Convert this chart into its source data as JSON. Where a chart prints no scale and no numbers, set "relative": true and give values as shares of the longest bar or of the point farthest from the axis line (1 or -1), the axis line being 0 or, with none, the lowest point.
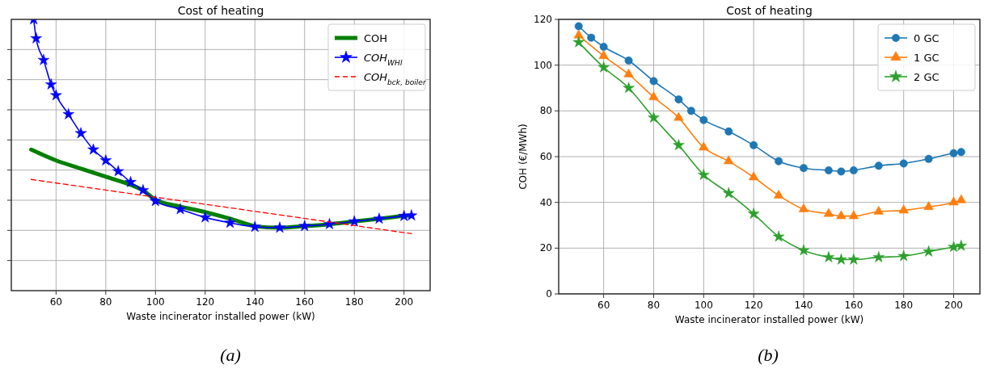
{
  "chart_data": [
    {
      "type": "line",
      "title": "Cost of heating",
      "xlabel": "Waste incinerator installed power (kW)",
      "relative": true,
      "tick_labels": "x",
      "xlim": [
        42,
        210.5
      ],
      "xticks": [
        60,
        80,
        100,
        120,
        140,
        160,
        180,
        200
      ],
      "grid": true,
      "legend": "top right",
      "annotations": [
        "(a)"
      ],
      "series": [
        {
          "name": "COH",
          "color": "#008000",
          "marker": "none",
          "line_style": "solid",
          "x": [
            50,
            60,
            70,
            80,
            90,
            95,
            100,
            110,
            120,
            130,
            137,
            140,
            150,
            160,
            170,
            180,
            190,
            200,
            203
          ],
          "values": [
            0.52,
            0.48,
            0.45,
            0.42,
            0.39,
            0.37,
            0.335,
            0.31,
            0.29,
            0.265,
            0.245,
            0.237,
            0.232,
            0.238,
            0.245,
            0.255,
            0.265,
            0.275,
            0.277
          ]
        },
        {
          "name": "COH$_{WHI}$",
          "color": "#0000ff",
          "marker": "star",
          "line_style": "solid",
          "x": [
            51,
            52,
            55,
            58,
            60,
            65,
            70,
            75,
            80,
            85,
            90,
            95,
            100,
            110,
            120,
            130,
            140,
            150,
            160,
            170,
            180,
            190,
            200,
            203
          ],
          "values": [
            1.0,
            0.93,
            0.85,
            0.76,
            0.72,
            0.65,
            0.58,
            0.52,
            0.48,
            0.44,
            0.4,
            0.37,
            0.33,
            0.3,
            0.27,
            0.25,
            0.235,
            0.232,
            0.238,
            0.245,
            0.255,
            0.265,
            0.275,
            0.277
          ]
        },
        {
          "name": "COH$_{bck, boiler}$",
          "color": "#ff0000",
          "marker": "none",
          "line_style": "dashed",
          "x": [
            50,
            203
          ],
          "values": [
            0.41,
            0.21
          ]
        }
      ]
    },
    {
      "type": "line",
      "title": "Cost of heating",
      "xlabel": "Waste incinerator installed power (kW)",
      "ylabel": "COH (€/MWh)",
      "xlim": [
        42,
        210.5
      ],
      "xticks": [
        60,
        80,
        100,
        120,
        140,
        160,
        180,
        200
      ],
      "ylim": [
        0,
        120
      ],
      "yticks": [
        0,
        20,
        40,
        60,
        80,
        100,
        120
      ],
      "grid": true,
      "legend": "top right",
      "annotations": [
        "(b)"
      ],
      "series": [
        {
          "name": "0 GC",
          "color": "#1f77b4",
          "marker": "circle",
          "line_style": "solid",
          "x": [
            50,
            55,
            60,
            70,
            80,
            90,
            95,
            100,
            110,
            120,
            130,
            140,
            150,
            155,
            160,
            170,
            180,
            190,
            200,
            203
          ],
          "values": [
            117,
            112,
            108,
            102,
            93,
            85,
            80,
            76,
            71,
            65,
            58,
            55,
            54,
            53.5,
            54,
            56,
            57,
            59,
            61.5,
            62
          ]
        },
        {
          "name": "1 GC",
          "color": "#ff7f0e",
          "marker": "triangle",
          "line_style": "solid",
          "x": [
            50,
            60,
            70,
            80,
            90,
            100,
            110,
            120,
            130,
            140,
            150,
            155,
            160,
            170,
            180,
            190,
            200,
            203
          ],
          "values": [
            113,
            104,
            96,
            86,
            77,
            64,
            58,
            51,
            43,
            37,
            35,
            34,
            34,
            36,
            36.5,
            38,
            40,
            41
          ]
        },
        {
          "name": "2 GC",
          "color": "#2ca02c",
          "marker": "star",
          "line_style": "solid",
          "x": [
            50,
            60,
            70,
            80,
            90,
            100,
            110,
            120,
            130,
            140,
            150,
            155,
            160,
            170,
            180,
            190,
            200,
            203
          ],
          "values": [
            110,
            99,
            90,
            77,
            65,
            52,
            44,
            35,
            25,
            19,
            16,
            15,
            15,
            16,
            16.5,
            18.5,
            20.5,
            21
          ]
        }
      ]
    }
  ]
}
